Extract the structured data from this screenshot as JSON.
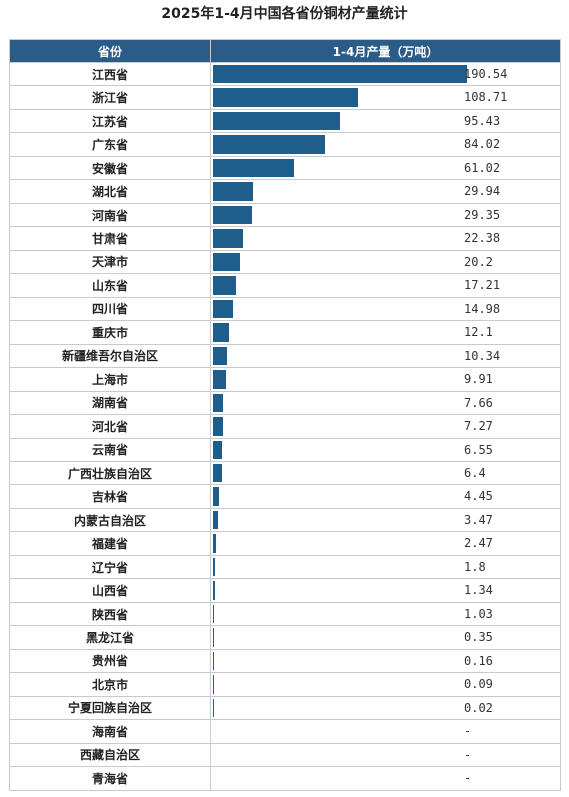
{
  "chart_data": {
    "type": "bar",
    "title": "2025年1-4月中国各省份铜材产量统计",
    "header_province": "省份",
    "header_value": "1-4月产量（万吨）",
    "xlim": [
      0,
      190.54
    ],
    "categories": [
      "江西省",
      "浙江省",
      "江苏省",
      "广东省",
      "安徽省",
      "湖北省",
      "河南省",
      "甘肃省",
      "天津市",
      "山东省",
      "四川省",
      "重庆市",
      "新疆维吾尔自治区",
      "上海市",
      "湖南省",
      "河北省",
      "云南省",
      "广西壮族自治区",
      "吉林省",
      "内蒙古自治区",
      "福建省",
      "辽宁省",
      "山西省",
      "陕西省",
      "黑龙江省",
      "贵州省",
      "北京市",
      "宁夏回族自治区",
      "海南省",
      "西藏自治区",
      "青海省"
    ],
    "values": [
      190.54,
      108.71,
      95.43,
      84.02,
      61.02,
      29.94,
      29.35,
      22.38,
      20.2,
      17.21,
      14.98,
      12.1,
      10.34,
      9.91,
      7.66,
      7.27,
      6.55,
      6.4,
      4.45,
      3.47,
      2.47,
      1.8,
      1.34,
      1.03,
      0.35,
      0.16,
      0.09,
      0.02,
      null,
      null,
      null
    ],
    "value_labels": [
      "190.54",
      "108.71",
      "95.43",
      "84.02",
      "61.02",
      "29.94",
      "29.35",
      "22.38",
      "20.2",
      "17.21",
      "14.98",
      "12.1",
      "10.34",
      "9.91",
      "7.66",
      "7.27",
      "6.55",
      "6.4",
      "4.45",
      "3.47",
      "2.47",
      "1.8",
      "1.34",
      "1.03",
      "0.35",
      "0.16",
      "0.09",
      "0.02",
      "-",
      "-",
      "-"
    ]
  },
  "colors": {
    "header_bg": "#2b5b87",
    "bar": "#1f5d8a",
    "border": "#c7cbd1"
  }
}
